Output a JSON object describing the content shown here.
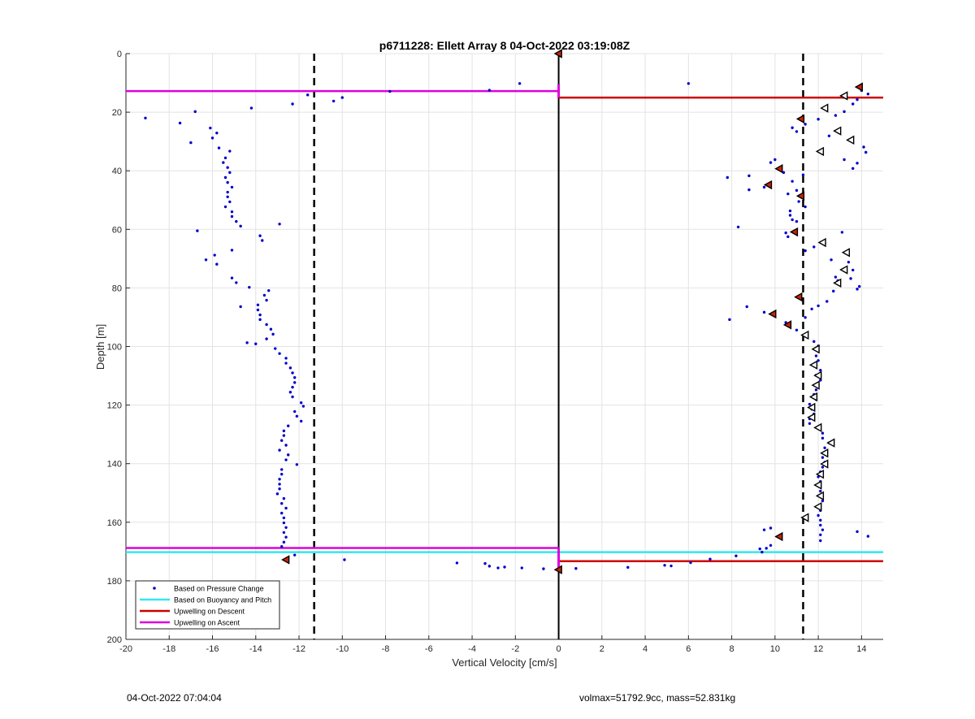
{
  "chart_data": {
    "type": "scatter",
    "title": "p6711228: Ellett Array 8 04-Oct-2022 03:19:08Z",
    "xlabel": "Vertical Velocity [cm/s]",
    "ylabel": "Depth [m]",
    "xlim": [
      -20,
      15
    ],
    "ylim": [
      0,
      200
    ],
    "y_reversed": true,
    "grid": true,
    "legend_position": "bottom-left",
    "xticks": [
      -20,
      -18,
      -16,
      -14,
      -12,
      -10,
      -8,
      -6,
      -4,
      -2,
      0,
      2,
      4,
      6,
      8,
      10,
      12,
      14
    ],
    "yticks": [
      0,
      20,
      40,
      60,
      80,
      100,
      120,
      140,
      160,
      180,
      200
    ],
    "legend": [
      {
        "label": "Based on Pressure Change",
        "color": "#0000cc",
        "kind": "dot"
      },
      {
        "label": "Based on Buoyancy and Pitch",
        "color": "#33e6f0",
        "kind": "line"
      },
      {
        "label": "Upwelling on Descent",
        "color": "#cc0000",
        "kind": "line"
      },
      {
        "label": "Upwelling on Ascent",
        "color": "#dd00dd",
        "kind": "line"
      }
    ],
    "colors": {
      "pressure": "#0000cc",
      "buoyancy": "#33e6f0",
      "descent": "#cc0000",
      "ascent": "#dd00dd",
      "marker_fill": "#cc2200"
    },
    "vertical_lines": [
      {
        "x": 0,
        "style": "solid",
        "color": "#000000"
      },
      {
        "x": -11.3,
        "style": "dashed",
        "color": "#000000"
      },
      {
        "x": 11.3,
        "style": "dashed",
        "color": "#000000"
      }
    ],
    "hlines": [
      {
        "series": "ascent",
        "y": 12.8,
        "x_from": -20,
        "x_to": 0
      },
      {
        "series": "descent",
        "y": 15.0,
        "x_from": 0,
        "x_to": 15
      },
      {
        "series": "ascent",
        "y": 168.8,
        "x_from": -20,
        "x_to": 0
      },
      {
        "series": "buoyancy",
        "y": 170.2,
        "x_from": -20,
        "x_to": 15
      },
      {
        "series": "descent",
        "y": 173.3,
        "x_from": 0,
        "x_to": 15
      }
    ],
    "pressure_points": [
      [
        -19.1,
        22
      ],
      [
        -17.5,
        23.7
      ],
      [
        -17,
        30.4
      ],
      [
        -16.8,
        19.8
      ],
      [
        -16.1,
        25.4
      ],
      [
        -15.8,
        27.1
      ],
      [
        -16,
        28.8
      ],
      [
        -15.7,
        32.2
      ],
      [
        -15.2,
        33.3
      ],
      [
        -15.4,
        35.6
      ],
      [
        -15.5,
        37.2
      ],
      [
        -15.3,
        38.9
      ],
      [
        -15.2,
        40.6
      ],
      [
        -15.4,
        42.3
      ],
      [
        -15.3,
        44
      ],
      [
        -15.1,
        45.6
      ],
      [
        -15.3,
        47.3
      ],
      [
        -15.3,
        48.9
      ],
      [
        -15.2,
        50.6
      ],
      [
        -15.4,
        52.3
      ],
      [
        -15.1,
        54
      ],
      [
        -15.1,
        55.6
      ],
      [
        -14.9,
        57.3
      ],
      [
        -16.7,
        60.5
      ],
      [
        -14.7,
        58.9
      ],
      [
        -13.8,
        62.2
      ],
      [
        -13.7,
        63.8
      ],
      [
        -15.1,
        67.1
      ],
      [
        -15.9,
        68.8
      ],
      [
        -16.3,
        70.4
      ],
      [
        -15.8,
        71.9
      ],
      [
        -15.1,
        76.6
      ],
      [
        -14.9,
        78.2
      ],
      [
        -14.3,
        79.8
      ],
      [
        -14.7,
        86.4
      ],
      [
        -14.4,
        98.7
      ],
      [
        -13.4,
        80.9
      ],
      [
        -13.6,
        82.5
      ],
      [
        -13.5,
        84.2
      ],
      [
        -13.9,
        85.8
      ],
      [
        -13.9,
        87.5
      ],
      [
        -13.8,
        89.2
      ],
      [
        -13.8,
        90.8
      ],
      [
        -13.5,
        92.5
      ],
      [
        -13.3,
        94.1
      ],
      [
        -13.2,
        95.8
      ],
      [
        -13.5,
        97.4
      ],
      [
        -14,
        99.1
      ],
      [
        -13.1,
        100.7
      ],
      [
        -12.9,
        102.4
      ],
      [
        -12.6,
        104
      ],
      [
        -12.6,
        105.7
      ],
      [
        -12.4,
        107.3
      ],
      [
        -12.3,
        109
      ],
      [
        -12.2,
        110.6
      ],
      [
        -12.2,
        112.3
      ],
      [
        -12.3,
        113.9
      ],
      [
        -12.4,
        115.6
      ],
      [
        -12.3,
        117.2
      ],
      [
        -11.9,
        119.2
      ],
      [
        -11.8,
        120.4
      ],
      [
        -12.2,
        122.2
      ],
      [
        -12.1,
        123.8
      ],
      [
        -11.9,
        125.5
      ],
      [
        -12.5,
        127.1
      ],
      [
        -12.7,
        128.8
      ],
      [
        -12.7,
        130.4
      ],
      [
        -12.8,
        132.1
      ],
      [
        -12.6,
        133.7
      ],
      [
        -12.9,
        135.4
      ],
      [
        -12.5,
        137
      ],
      [
        -12.6,
        138.7
      ],
      [
        -12.1,
        140.3
      ],
      [
        -12.8,
        142
      ],
      [
        -12.8,
        143.6
      ],
      [
        -12.9,
        145.3
      ],
      [
        -12.9,
        147
      ],
      [
        -12.9,
        148.6
      ],
      [
        -13,
        150.3
      ],
      [
        -12.7,
        151.9
      ],
      [
        -12.8,
        153.6
      ],
      [
        -12.6,
        155.2
      ],
      [
        -12.8,
        156.9
      ],
      [
        -12.7,
        158.5
      ],
      [
        -12.7,
        160.2
      ],
      [
        -12.6,
        161.8
      ],
      [
        -12.7,
        163.5
      ],
      [
        -12.6,
        165.1
      ],
      [
        -12.7,
        166.8
      ],
      [
        -12.8,
        168.3
      ],
      [
        -12.2,
        171.2
      ],
      [
        -14.2,
        18.6
      ],
      [
        -12.3,
        17.2
      ],
      [
        -12.9,
        58.2
      ],
      [
        -11.6,
        14.1
      ],
      [
        -10.4,
        16.2
      ],
      [
        -10,
        15
      ],
      [
        -7.8,
        12.9
      ],
      [
        -3.2,
        12.5
      ],
      [
        -1.8,
        10.2
      ],
      [
        -9.9,
        172.8
      ],
      [
        -4.7,
        173.9
      ],
      [
        -3.4,
        174.1
      ],
      [
        -3.2,
        175
      ],
      [
        -2.8,
        175.6
      ],
      [
        -2.5,
        175.3
      ],
      [
        -1.7,
        175.6
      ],
      [
        -0.7,
        175.9
      ],
      [
        0.8,
        175.8
      ],
      [
        3.2,
        175.4
      ],
      [
        4.9,
        174.7
      ],
      [
        5.2,
        174.9
      ],
      [
        6.1,
        173.8
      ],
      [
        7,
        172.6
      ],
      [
        8.2,
        171.5
      ],
      [
        9.4,
        170.2
      ],
      [
        6,
        10.2
      ],
      [
        14,
        12.6
      ],
      [
        14.3,
        13.8
      ],
      [
        13.8,
        15.7
      ],
      [
        13.6,
        17.2
      ],
      [
        13.2,
        19.8
      ],
      [
        12.8,
        21.1
      ],
      [
        12,
        22.4
      ],
      [
        11.4,
        24.1
      ],
      [
        10.8,
        25.3
      ],
      [
        11,
        26.6
      ],
      [
        12.5,
        28.1
      ],
      [
        14.1,
        31.9
      ],
      [
        14.2,
        33.7
      ],
      [
        13.2,
        36.2
      ],
      [
        13.8,
        37.4
      ],
      [
        13.6,
        39.2
      ],
      [
        10,
        36.2
      ],
      [
        9.8,
        37.2
      ],
      [
        10.4,
        40.6
      ],
      [
        8.8,
        41.7
      ],
      [
        7.8,
        42.3
      ],
      [
        10.8,
        43.6
      ],
      [
        11.3,
        41.4
      ],
      [
        9.5,
        45.6
      ],
      [
        8.8,
        46.5
      ],
      [
        11,
        46.7
      ],
      [
        10.6,
        47.9
      ],
      [
        11.1,
        50.5
      ],
      [
        11.4,
        52.3
      ],
      [
        10.7,
        53.7
      ],
      [
        10.7,
        55.2
      ],
      [
        10.8,
        56.7
      ],
      [
        11,
        57.3
      ],
      [
        8.3,
        59.2
      ],
      [
        10.5,
        61.2
      ],
      [
        10.6,
        62.5
      ],
      [
        13.1,
        61
      ],
      [
        12.3,
        64.7
      ],
      [
        11.8,
        66
      ],
      [
        11.4,
        67.3
      ],
      [
        12.6,
        70.4
      ],
      [
        13.4,
        71.2
      ],
      [
        13.6,
        73.9
      ],
      [
        12.8,
        76.3
      ],
      [
        13.5,
        76.8
      ],
      [
        12.9,
        77.5
      ],
      [
        13.9,
        79.5
      ],
      [
        13.8,
        80.4
      ],
      [
        12.7,
        81.1
      ],
      [
        12.4,
        84.6
      ],
      [
        12,
        86.1
      ],
      [
        8.7,
        86.4
      ],
      [
        11.7,
        87.2
      ],
      [
        9.5,
        88.3
      ],
      [
        7.9,
        90.8
      ],
      [
        10.5,
        91.8
      ],
      [
        11.4,
        90.1
      ],
      [
        11,
        94.4
      ],
      [
        11.4,
        96.1
      ],
      [
        11.8,
        98.3
      ],
      [
        12,
        99.8
      ],
      [
        12,
        101.4
      ],
      [
        11.9,
        103.2
      ],
      [
        12,
        104.8
      ],
      [
        11.9,
        106.5
      ],
      [
        12.1,
        108.1
      ],
      [
        11.9,
        109.8
      ],
      [
        12.1,
        111.5
      ],
      [
        12,
        113.1
      ],
      [
        11.9,
        114.8
      ],
      [
        11.8,
        116.4
      ],
      [
        11.9,
        118.1
      ],
      [
        11.6,
        119.7
      ],
      [
        11.7,
        121.4
      ],
      [
        11.8,
        123
      ],
      [
        11.6,
        124.7
      ],
      [
        11.6,
        126.3
      ],
      [
        12,
        128
      ],
      [
        12.2,
        129.6
      ],
      [
        12.2,
        131.3
      ],
      [
        12.5,
        132.9
      ],
      [
        12.3,
        134.6
      ],
      [
        12.3,
        136.2
      ],
      [
        12.2,
        137.9
      ],
      [
        12.3,
        139.5
      ],
      [
        12.2,
        141.2
      ],
      [
        12.1,
        142.8
      ],
      [
        12,
        144.5
      ],
      [
        12.1,
        146.1
      ],
      [
        12.1,
        147.8
      ],
      [
        12.1,
        149.4
      ],
      [
        12.1,
        151.1
      ],
      [
        12.2,
        152.7
      ],
      [
        12,
        154.4
      ],
      [
        12.1,
        156
      ],
      [
        12,
        157.7
      ],
      [
        12.1,
        159.3
      ],
      [
        12.1,
        161
      ],
      [
        12.2,
        162.6
      ],
      [
        12.1,
        164.3
      ],
      [
        12.1,
        166.3
      ],
      [
        9.8,
        162
      ],
      [
        9.5,
        162.6
      ],
      [
        9.8,
        167.9
      ],
      [
        9.6,
        168.9
      ],
      [
        9.3,
        169.1
      ],
      [
        13.8,
        163.2
      ],
      [
        14.3,
        164.8
      ]
    ],
    "descent_markers": [
      [
        13.9,
        11.4
      ],
      [
        11.2,
        22.3
      ],
      [
        10.2,
        39.3
      ],
      [
        9.7,
        44.8
      ],
      [
        11.2,
        48.6
      ],
      [
        10.9,
        60.9
      ],
      [
        11.1,
        83.1
      ],
      [
        9.9,
        88.9
      ],
      [
        10.6,
        92.6
      ],
      [
        10.2,
        164.9
      ],
      [
        -12.6,
        172.8
      ],
      [
        0,
        0
      ],
      [
        0,
        176.2
      ]
    ],
    "ascent_markers": [
      [
        13.2,
        14.4
      ],
      [
        12.3,
        18.6
      ],
      [
        12.9,
        26.4
      ],
      [
        13.5,
        29.5
      ],
      [
        12.1,
        33.4
      ],
      [
        12.2,
        64.5
      ],
      [
        13.3,
        67.9
      ],
      [
        13.2,
        73.8
      ],
      [
        12.9,
        78.3
      ],
      [
        11.4,
        96.1
      ],
      [
        11.9,
        100.9
      ],
      [
        11.8,
        106.3
      ],
      [
        12,
        109.9
      ],
      [
        11.9,
        113.2
      ],
      [
        11.8,
        117.2
      ],
      [
        11.7,
        120.8
      ],
      [
        11.7,
        124.2
      ],
      [
        12,
        127.7
      ],
      [
        12.6,
        132.9
      ],
      [
        12.3,
        136.4
      ],
      [
        12.3,
        140.1
      ],
      [
        12.1,
        143.6
      ],
      [
        12,
        147.3
      ],
      [
        12.1,
        151
      ],
      [
        12,
        154.7
      ],
      [
        11.4,
        158.4
      ]
    ]
  },
  "footer": {
    "left": "04-Oct-2022 07:04:04",
    "right": "volmax=51792.9cc, mass=52.831kg"
  }
}
